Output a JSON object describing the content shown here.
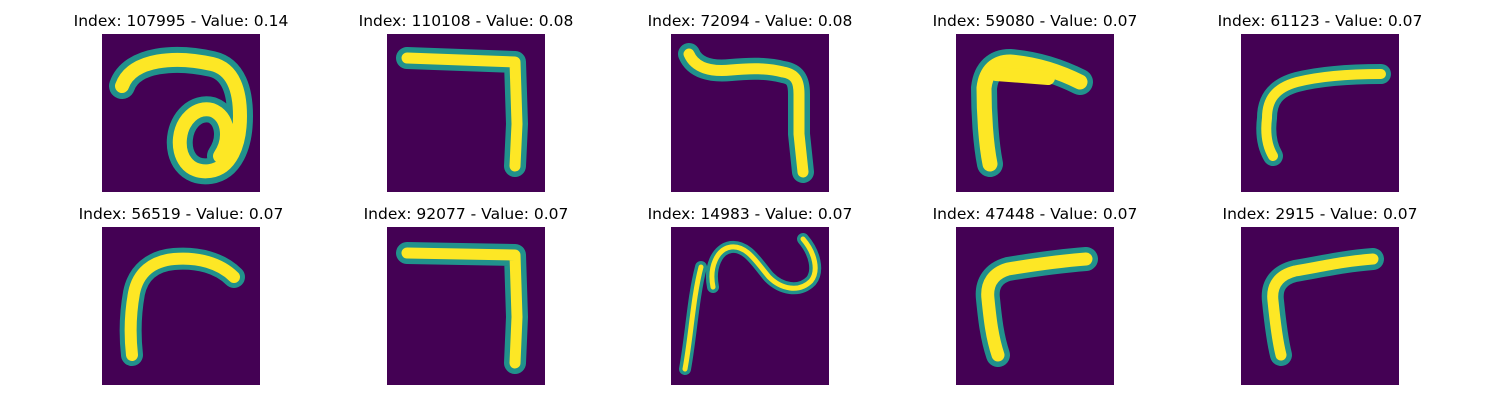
{
  "colors": {
    "background": "#440154",
    "stroke_mid": "#21918c",
    "stroke_core": "#fde725"
  },
  "panels": [
    {
      "title": "Index: 107995 - Value: 0.14",
      "digit_shape": "loop-curl"
    },
    {
      "title": "Index: 110108 - Value: 0.08",
      "digit_shape": "seven-angular"
    },
    {
      "title": "Index: 72094 - Value: 0.08",
      "digit_shape": "seven-wavy-top"
    },
    {
      "title": "Index: 59080 - Value: 0.07",
      "digit_shape": "seven-slanted"
    },
    {
      "title": "Index: 61123 - Value: 0.07",
      "digit_shape": "seven-thin-slanted"
    },
    {
      "title": "Index: 56519 - Value: 0.07",
      "digit_shape": "seven-curved"
    },
    {
      "title": "Index: 92077 - Value: 0.07",
      "digit_shape": "seven-angular"
    },
    {
      "title": "Index: 14983 - Value: 0.07",
      "digit_shape": "squiggle"
    },
    {
      "title": "Index: 47448 - Value: 0.07",
      "digit_shape": "seven-slanted"
    },
    {
      "title": "Index: 2915 - Value: 0.07",
      "digit_shape": "seven-slanted"
    }
  ]
}
